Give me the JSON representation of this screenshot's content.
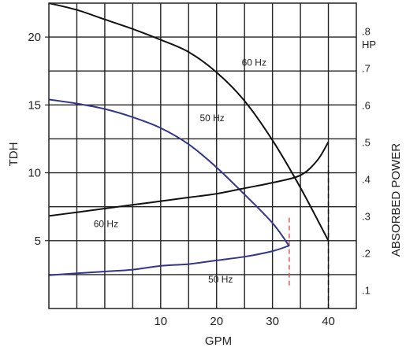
{
  "chart_data": {
    "type": "line",
    "title": "",
    "xlabel": "GPM",
    "ylabel": "TDH",
    "y2label": "ABSORBED POWER",
    "y2unit": "HP",
    "xlim": [
      -10,
      45
    ],
    "ylim": [
      0,
      22.5
    ],
    "y2lim": [
      0.05,
      0.875
    ],
    "grid": true,
    "x_ticks": [
      "10",
      "20",
      "30",
      "40"
    ],
    "x_tick_values": [
      10,
      20,
      30,
      40
    ],
    "y_ticks": [
      "5",
      "10",
      "15",
      "20"
    ],
    "y_tick_values": [
      5,
      10,
      15,
      20
    ],
    "y2_ticks": [
      ".1",
      ".2",
      ".3",
      ".4",
      ".5",
      ".6",
      ".7",
      ".8"
    ],
    "y2_tick_values": [
      0.1,
      0.2,
      0.3,
      0.4,
      0.5,
      0.6,
      0.7,
      0.8
    ],
    "series": [
      {
        "label": "60 Hz",
        "axis": "left",
        "color": "#111111",
        "x": [
          -10,
          -5,
          0,
          5,
          10,
          15,
          20,
          25,
          30,
          35,
          40
        ],
        "y": [
          22.5,
          22.0,
          21.3,
          20.6,
          19.8,
          18.9,
          17.4,
          15.3,
          12.4,
          8.9,
          5.0
        ]
      },
      {
        "label": "50 Hz",
        "axis": "left",
        "color": "#33358a",
        "x": [
          -10,
          -5,
          0,
          5,
          10,
          15,
          20,
          25,
          30,
          33
        ],
        "y": [
          15.4,
          15.1,
          14.7,
          14.1,
          13.3,
          12.1,
          10.4,
          8.4,
          6.3,
          4.6
        ]
      },
      {
        "label": "60 Hz",
        "axis": "right",
        "color": "#111111",
        "x": [
          -10,
          -5,
          0,
          5,
          10,
          15,
          20,
          25,
          30,
          35,
          38,
          40
        ],
        "y": [
          0.3,
          0.31,
          0.32,
          0.33,
          0.34,
          0.35,
          0.36,
          0.375,
          0.39,
          0.41,
          0.45,
          0.5
        ]
      },
      {
        "label": "50 Hz",
        "axis": "right",
        "color": "#33358a",
        "x": [
          -10,
          -5,
          0,
          5,
          10,
          15,
          20,
          25,
          30,
          33
        ],
        "y": [
          0.14,
          0.145,
          0.15,
          0.155,
          0.165,
          0.17,
          0.18,
          0.19,
          0.205,
          0.22
        ]
      }
    ],
    "curve_labels": [
      {
        "text": "60 Hz",
        "x": 24.5,
        "y": 17.9
      },
      {
        "text": "50 Hz",
        "x": 17,
        "y": 13.8
      },
      {
        "text": "60 Hz",
        "x": -2,
        "y": 6.0
      },
      {
        "text": "50 Hz",
        "x": 18.5,
        "y": 1.9
      }
    ],
    "limit_lines": [
      {
        "x": 33,
        "from": 1.7,
        "to": 6.8,
        "color": "#e05050",
        "style": "dashed"
      },
      {
        "x": 40,
        "from": 0,
        "to": 10.5,
        "color": "#111111",
        "style": "dashed"
      }
    ]
  }
}
